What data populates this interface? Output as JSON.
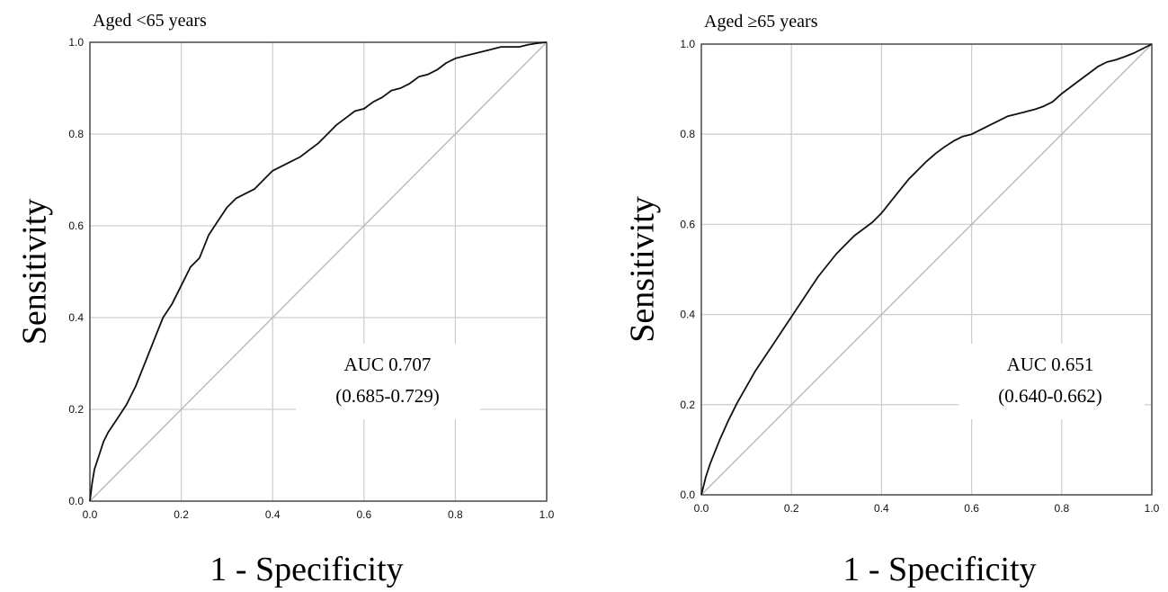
{
  "chart_data": [
    {
      "type": "line",
      "title": "Aged <65 years",
      "xlabel": "1 - Specificity",
      "ylabel": "Sensitivity",
      "xlim": [
        0,
        1
      ],
      "ylim": [
        0,
        1
      ],
      "xticks": [
        "0.0",
        "0.2",
        "0.4",
        "0.6",
        "0.8",
        "1.0"
      ],
      "yticks": [
        "0.0",
        "0.2",
        "0.4",
        "0.6",
        "0.8",
        "1.0"
      ],
      "grid": true,
      "legend": "none",
      "annotation": [
        "AUC 0.707",
        "(0.685-0.729)"
      ],
      "series": [
        {
          "x": [
            0,
            0.005,
            0.01,
            0.02,
            0.03,
            0.04,
            0.06,
            0.08,
            0.1,
            0.12,
            0.14,
            0.16,
            0.18,
            0.2,
            0.22,
            0.24,
            0.26,
            0.28,
            0.3,
            0.32,
            0.34,
            0.36,
            0.38,
            0.4,
            0.42,
            0.44,
            0.46,
            0.48,
            0.5,
            0.52,
            0.54,
            0.56,
            0.58,
            0.6,
            0.62,
            0.64,
            0.66,
            0.68,
            0.7,
            0.72,
            0.74,
            0.76,
            0.78,
            0.8,
            0.82,
            0.84,
            0.86,
            0.88,
            0.9,
            0.92,
            0.94,
            0.96,
            0.98,
            1.0
          ],
          "y": [
            0,
            0.04,
            0.07,
            0.1,
            0.13,
            0.15,
            0.18,
            0.21,
            0.25,
            0.3,
            0.35,
            0.4,
            0.43,
            0.47,
            0.51,
            0.53,
            0.58,
            0.61,
            0.64,
            0.66,
            0.67,
            0.68,
            0.7,
            0.72,
            0.73,
            0.74,
            0.75,
            0.765,
            0.78,
            0.8,
            0.82,
            0.835,
            0.85,
            0.855,
            0.87,
            0.88,
            0.895,
            0.9,
            0.91,
            0.925,
            0.93,
            0.94,
            0.955,
            0.965,
            0.97,
            0.975,
            0.98,
            0.985,
            0.99,
            0.99,
            0.99,
            0.995,
            0.998,
            1.0
          ]
        },
        {
          "x": [
            0,
            1
          ],
          "y": [
            0,
            1
          ]
        }
      ]
    },
    {
      "type": "line",
      "title": "Aged ≥65 years",
      "xlabel": "1 - Specificity",
      "ylabel": "Sensitivity",
      "xlim": [
        0,
        1
      ],
      "ylim": [
        0,
        1
      ],
      "xticks": [
        "0.0",
        "0.2",
        "0.4",
        "0.6",
        "0.8",
        "1.0"
      ],
      "yticks": [
        "0.0",
        "0.2",
        "0.4",
        "0.6",
        "0.8",
        "1.0"
      ],
      "grid": true,
      "legend": "none",
      "annotation": [
        "AUC 0.651",
        "(0.640-0.662)"
      ],
      "series": [
        {
          "x": [
            0,
            0.005,
            0.01,
            0.02,
            0.04,
            0.06,
            0.08,
            0.1,
            0.12,
            0.14,
            0.16,
            0.18,
            0.2,
            0.22,
            0.24,
            0.26,
            0.28,
            0.3,
            0.32,
            0.34,
            0.36,
            0.38,
            0.4,
            0.42,
            0.44,
            0.46,
            0.48,
            0.5,
            0.52,
            0.54,
            0.56,
            0.58,
            0.6,
            0.62,
            0.64,
            0.66,
            0.68,
            0.7,
            0.72,
            0.74,
            0.76,
            0.78,
            0.8,
            0.82,
            0.84,
            0.86,
            0.88,
            0.9,
            0.92,
            0.94,
            0.96,
            0.98,
            1.0
          ],
          "y": [
            0,
            0.02,
            0.04,
            0.07,
            0.12,
            0.165,
            0.205,
            0.24,
            0.275,
            0.305,
            0.335,
            0.365,
            0.395,
            0.425,
            0.455,
            0.485,
            0.51,
            0.535,
            0.555,
            0.575,
            0.59,
            0.605,
            0.625,
            0.65,
            0.675,
            0.7,
            0.72,
            0.74,
            0.757,
            0.772,
            0.785,
            0.795,
            0.8,
            0.81,
            0.82,
            0.83,
            0.84,
            0.845,
            0.85,
            0.855,
            0.862,
            0.872,
            0.89,
            0.905,
            0.92,
            0.935,
            0.95,
            0.96,
            0.965,
            0.972,
            0.98,
            0.99,
            1.0
          ]
        },
        {
          "x": [
            0,
            1
          ],
          "y": [
            0,
            1
          ]
        }
      ]
    }
  ]
}
